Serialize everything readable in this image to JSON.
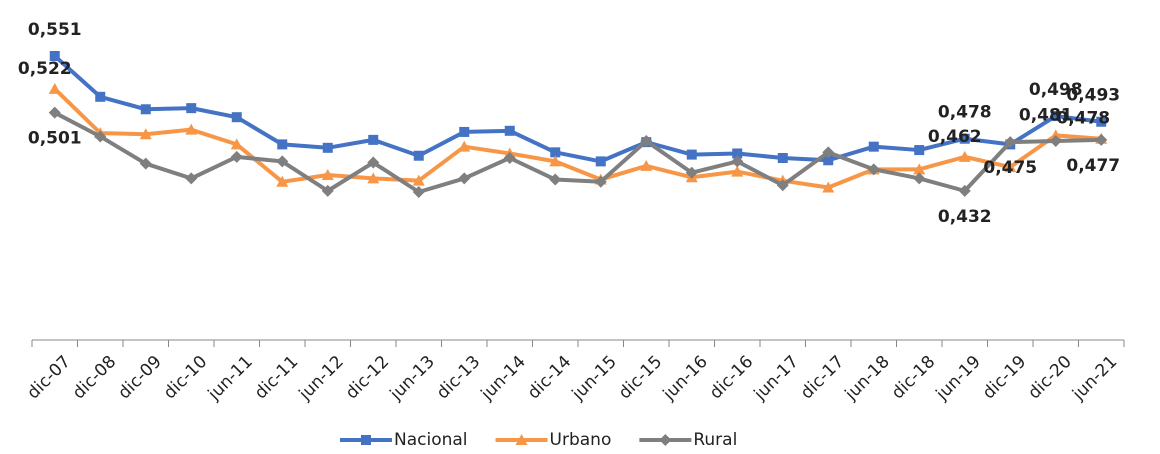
{
  "chart_data": {
    "type": "line",
    "categories": [
      "dic-07",
      "dic-08",
      "dic-09",
      "dic-10",
      "jun-11",
      "dic-11",
      "jun-12",
      "dic-12",
      "jun-13",
      "dic-13",
      "jun-14",
      "dic-14",
      "jun-15",
      "dic-15",
      "jun-16",
      "dic-16",
      "jun-17",
      "dic-17",
      "jun-18",
      "dic-18",
      "jun-19",
      "dic-19",
      "dic-20",
      "jun-21"
    ],
    "series": [
      {
        "name": "Nacional",
        "color": "#4472c4",
        "marker": "square",
        "values": [
          0.551,
          0.515,
          0.504,
          0.505,
          0.497,
          0.473,
          0.47,
          0.477,
          0.463,
          0.484,
          0.485,
          0.466,
          0.458,
          0.475,
          0.464,
          0.465,
          0.461,
          0.459,
          0.471,
          0.468,
          0.478,
          0.473,
          0.498,
          0.493
        ],
        "value_labels": [
          "0,551",
          null,
          null,
          null,
          null,
          null,
          null,
          null,
          null,
          null,
          null,
          null,
          null,
          null,
          null,
          null,
          null,
          null,
          null,
          null,
          "0,478",
          null,
          "0,498",
          "0,493"
        ]
      },
      {
        "name": "Urbano",
        "color": "#f79646",
        "marker": "triangle",
        "values": [
          0.522,
          0.483,
          0.482,
          0.486,
          0.473,
          0.44,
          0.446,
          0.443,
          0.441,
          0.471,
          0.465,
          0.458,
          0.442,
          0.454,
          0.444,
          0.449,
          0.441,
          0.435,
          0.451,
          0.451,
          0.462,
          0.453,
          0.481,
          0.478
        ],
        "value_labels": [
          "0,522",
          null,
          null,
          null,
          null,
          null,
          null,
          null,
          null,
          null,
          null,
          null,
          null,
          null,
          null,
          null,
          null,
          null,
          null,
          null,
          "0,462",
          null,
          "0,481",
          "0,478"
        ]
      },
      {
        "name": "Rural",
        "color": "#7f7f7f",
        "marker": "diamond",
        "values": [
          0.501,
          0.48,
          0.456,
          0.443,
          0.462,
          0.458,
          0.432,
          0.457,
          0.431,
          0.443,
          0.461,
          0.442,
          0.44,
          0.476,
          0.448,
          0.458,
          0.437,
          0.466,
          0.451,
          0.443,
          0.432,
          0.475,
          0.476,
          0.477
        ],
        "value_labels": [
          "0,501",
          null,
          null,
          null,
          null,
          null,
          null,
          null,
          null,
          null,
          null,
          null,
          null,
          null,
          null,
          null,
          null,
          null,
          null,
          null,
          "0,432",
          "0,475",
          null,
          "0,477"
        ]
      }
    ],
    "legend": "bottom"
  }
}
